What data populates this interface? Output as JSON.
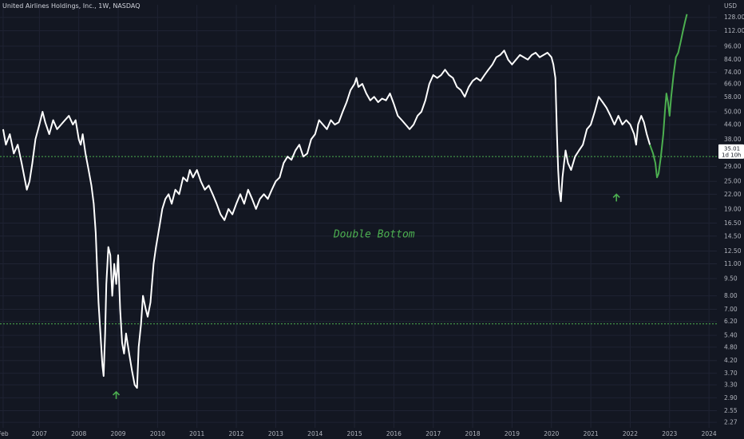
{
  "chart_data": {
    "type": "line",
    "title": "United Airlines Holdings, Inc., 1W, NASDAQ",
    "currency": "USD",
    "y_scale": "log",
    "ylim": [
      2.15,
      145
    ],
    "xlim": [
      2006.0,
      2024.2
    ],
    "y_ticks": [
      "128.00",
      "112.00",
      "96.00",
      "84.00",
      "74.00",
      "66.00",
      "58.00",
      "50.00",
      "44.00",
      "38.00",
      "29.00",
      "25.00",
      "22.00",
      "19.00",
      "16.50",
      "14.50",
      "12.50",
      "11.00",
      "9.50",
      "8.00",
      "7.00",
      "6.20",
      "5.40",
      "4.80",
      "4.20",
      "3.70",
      "3.30",
      "2.90",
      "2.55",
      "2.27"
    ],
    "x_ticks": [
      {
        "label": "Feb",
        "x": 2006.08
      },
      {
        "label": "2007",
        "x": 2007
      },
      {
        "label": "2008",
        "x": 2008
      },
      {
        "label": "2009",
        "x": 2009
      },
      {
        "label": "2010",
        "x": 2010
      },
      {
        "label": "2011",
        "x": 2011
      },
      {
        "label": "2012",
        "x": 2012
      },
      {
        "label": "2013",
        "x": 2013
      },
      {
        "label": "2014",
        "x": 2014
      },
      {
        "label": "2015",
        "x": 2015
      },
      {
        "label": "2016",
        "x": 2016
      },
      {
        "label": "2017",
        "x": 2017
      },
      {
        "label": "2018",
        "x": 2018
      },
      {
        "label": "2019",
        "x": 2019
      },
      {
        "label": "2020",
        "x": 2020
      },
      {
        "label": "2021",
        "x": 2021
      },
      {
        "label": "2022",
        "x": 2022
      },
      {
        "label": "2023",
        "x": 2023
      },
      {
        "label": "2024",
        "x": 2024
      }
    ],
    "series": [
      {
        "color": "#ffffff",
        "points": [
          [
            2006.08,
            42
          ],
          [
            2006.15,
            36
          ],
          [
            2006.25,
            40
          ],
          [
            2006.35,
            33
          ],
          [
            2006.45,
            36
          ],
          [
            2006.55,
            30
          ],
          [
            2006.62,
            26
          ],
          [
            2006.68,
            23
          ],
          [
            2006.75,
            25
          ],
          [
            2006.82,
            30
          ],
          [
            2006.9,
            38
          ],
          [
            2007.0,
            44
          ],
          [
            2007.08,
            50
          ],
          [
            2007.15,
            45
          ],
          [
            2007.25,
            40
          ],
          [
            2007.35,
            46
          ],
          [
            2007.45,
            42
          ],
          [
            2007.55,
            44
          ],
          [
            2007.65,
            46
          ],
          [
            2007.75,
            48
          ],
          [
            2007.85,
            44
          ],
          [
            2007.92,
            46
          ],
          [
            2008.0,
            38
          ],
          [
            2008.05,
            36
          ],
          [
            2008.1,
            40
          ],
          [
            2008.17,
            33
          ],
          [
            2008.25,
            28
          ],
          [
            2008.32,
            24
          ],
          [
            2008.38,
            20
          ],
          [
            2008.43,
            15
          ],
          [
            2008.47,
            10
          ],
          [
            2008.5,
            7.5
          ],
          [
            2008.55,
            5.5
          ],
          [
            2008.6,
            4.0
          ],
          [
            2008.63,
            3.6
          ],
          [
            2008.67,
            5.5
          ],
          [
            2008.7,
            9.0
          ],
          [
            2008.75,
            13.0
          ],
          [
            2008.8,
            12.0
          ],
          [
            2008.85,
            8.0
          ],
          [
            2008.9,
            11.0
          ],
          [
            2008.95,
            9.0
          ],
          [
            2009.0,
            12.0
          ],
          [
            2009.05,
            7.0
          ],
          [
            2009.1,
            5.0
          ],
          [
            2009.15,
            4.5
          ],
          [
            2009.2,
            5.5
          ],
          [
            2009.28,
            4.5
          ],
          [
            2009.35,
            3.8
          ],
          [
            2009.42,
            3.3
          ],
          [
            2009.48,
            3.2
          ],
          [
            2009.52,
            4.8
          ],
          [
            2009.58,
            6.0
          ],
          [
            2009.63,
            8.0
          ],
          [
            2009.7,
            7.0
          ],
          [
            2009.75,
            6.5
          ],
          [
            2009.82,
            7.5
          ],
          [
            2009.9,
            11.0
          ],
          [
            2009.96,
            13.0
          ],
          [
            2010.05,
            16.0
          ],
          [
            2010.12,
            19.0
          ],
          [
            2010.2,
            21.0
          ],
          [
            2010.28,
            22.0
          ],
          [
            2010.36,
            20.0
          ],
          [
            2010.45,
            23.0
          ],
          [
            2010.55,
            22.0
          ],
          [
            2010.65,
            26.0
          ],
          [
            2010.75,
            25.0
          ],
          [
            2010.82,
            28.0
          ],
          [
            2010.9,
            26.0
          ],
          [
            2011.0,
            28.0
          ],
          [
            2011.1,
            25.0
          ],
          [
            2011.2,
            23.0
          ],
          [
            2011.3,
            24.0
          ],
          [
            2011.4,
            22.0
          ],
          [
            2011.5,
            20.0
          ],
          [
            2011.6,
            18.0
          ],
          [
            2011.7,
            17.0
          ],
          [
            2011.8,
            19.0
          ],
          [
            2011.9,
            18.0
          ],
          [
            2012.0,
            20.0
          ],
          [
            2012.1,
            22.0
          ],
          [
            2012.2,
            20.0
          ],
          [
            2012.3,
            23.0
          ],
          [
            2012.4,
            21.0
          ],
          [
            2012.5,
            19.0
          ],
          [
            2012.6,
            21.0
          ],
          [
            2012.7,
            22.0
          ],
          [
            2012.8,
            21.0
          ],
          [
            2012.9,
            23.0
          ],
          [
            2013.0,
            25.0
          ],
          [
            2013.1,
            26.0
          ],
          [
            2013.2,
            30.0
          ],
          [
            2013.3,
            32.0
          ],
          [
            2013.4,
            31.0
          ],
          [
            2013.5,
            34.0
          ],
          [
            2013.6,
            36.0
          ],
          [
            2013.7,
            32.0
          ],
          [
            2013.8,
            33.0
          ],
          [
            2013.9,
            38.0
          ],
          [
            2014.0,
            40.0
          ],
          [
            2014.1,
            46.0
          ],
          [
            2014.2,
            44.0
          ],
          [
            2014.3,
            42.0
          ],
          [
            2014.4,
            46.0
          ],
          [
            2014.5,
            44.0
          ],
          [
            2014.6,
            45.0
          ],
          [
            2014.7,
            50.0
          ],
          [
            2014.8,
            55.0
          ],
          [
            2014.9,
            62.0
          ],
          [
            2015.0,
            66.0
          ],
          [
            2015.05,
            70.0
          ],
          [
            2015.1,
            64.0
          ],
          [
            2015.2,
            66.0
          ],
          [
            2015.3,
            60.0
          ],
          [
            2015.4,
            56.0
          ],
          [
            2015.5,
            58.0
          ],
          [
            2015.6,
            55.0
          ],
          [
            2015.7,
            57.0
          ],
          [
            2015.8,
            56.0
          ],
          [
            2015.9,
            60.0
          ],
          [
            2016.0,
            54.0
          ],
          [
            2016.1,
            48.0
          ],
          [
            2016.2,
            46.0
          ],
          [
            2016.3,
            44.0
          ],
          [
            2016.4,
            42.0
          ],
          [
            2016.5,
            44.0
          ],
          [
            2016.6,
            48.0
          ],
          [
            2016.7,
            50.0
          ],
          [
            2016.8,
            56.0
          ],
          [
            2016.9,
            66.0
          ],
          [
            2017.0,
            72.0
          ],
          [
            2017.1,
            70.0
          ],
          [
            2017.2,
            72.0
          ],
          [
            2017.3,
            76.0
          ],
          [
            2017.4,
            72.0
          ],
          [
            2017.5,
            70.0
          ],
          [
            2017.6,
            64.0
          ],
          [
            2017.7,
            62.0
          ],
          [
            2017.8,
            58.0
          ],
          [
            2017.9,
            64.0
          ],
          [
            2018.0,
            68.0
          ],
          [
            2018.1,
            70.0
          ],
          [
            2018.2,
            68.0
          ],
          [
            2018.3,
            72.0
          ],
          [
            2018.4,
            76.0
          ],
          [
            2018.5,
            80.0
          ],
          [
            2018.6,
            86.0
          ],
          [
            2018.7,
            88.0
          ],
          [
            2018.8,
            92.0
          ],
          [
            2018.9,
            84.0
          ],
          [
            2019.0,
            80.0
          ],
          [
            2019.1,
            84.0
          ],
          [
            2019.2,
            88.0
          ],
          [
            2019.3,
            86.0
          ],
          [
            2019.4,
            84.0
          ],
          [
            2019.5,
            88.0
          ],
          [
            2019.6,
            90.0
          ],
          [
            2019.7,
            86.0
          ],
          [
            2019.8,
            88.0
          ],
          [
            2019.9,
            90.0
          ],
          [
            2020.0,
            86.0
          ],
          [
            2020.05,
            80.0
          ],
          [
            2020.1,
            70.0
          ],
          [
            2020.14,
            40.0
          ],
          [
            2020.17,
            28.0
          ],
          [
            2020.2,
            23.0
          ],
          [
            2020.24,
            20.5
          ],
          [
            2020.28,
            26.0
          ],
          [
            2020.32,
            30.0
          ],
          [
            2020.36,
            34.0
          ],
          [
            2020.42,
            30.0
          ],
          [
            2020.5,
            28.0
          ],
          [
            2020.6,
            32.0
          ],
          [
            2020.7,
            34.0
          ],
          [
            2020.8,
            36.0
          ],
          [
            2020.9,
            42.0
          ],
          [
            2021.0,
            44.0
          ],
          [
            2021.1,
            50.0
          ],
          [
            2021.2,
            58.0
          ],
          [
            2021.3,
            55.0
          ],
          [
            2021.4,
            52.0
          ],
          [
            2021.5,
            48.0
          ],
          [
            2021.6,
            44.0
          ],
          [
            2021.7,
            48.0
          ],
          [
            2021.8,
            44.0
          ],
          [
            2021.9,
            46.0
          ],
          [
            2022.0,
            44.0
          ],
          [
            2022.1,
            40.0
          ],
          [
            2022.15,
            36.0
          ],
          [
            2022.2,
            44.0
          ],
          [
            2022.28,
            48.0
          ],
          [
            2022.35,
            45.0
          ],
          [
            2022.42,
            40.0
          ],
          [
            2022.5,
            36.0
          ]
        ]
      },
      {
        "color": "#4caf50",
        "points": [
          [
            2022.5,
            36.0
          ],
          [
            2022.58,
            33.0
          ],
          [
            2022.64,
            30.0
          ],
          [
            2022.68,
            26.0
          ],
          [
            2022.72,
            27.0
          ],
          [
            2022.78,
            32.0
          ],
          [
            2022.84,
            40.0
          ],
          [
            2022.88,
            50.0
          ],
          [
            2022.92,
            60.0
          ],
          [
            2022.96,
            55.0
          ],
          [
            2023.0,
            48.0
          ],
          [
            2023.04,
            58.0
          ],
          [
            2023.1,
            72.0
          ],
          [
            2023.16,
            86.0
          ],
          [
            2023.22,
            90.0
          ],
          [
            2023.28,
            100.0
          ],
          [
            2023.34,
            112.0
          ],
          [
            2023.4,
            124.0
          ],
          [
            2023.44,
            132.0
          ]
        ]
      }
    ],
    "horizontal_lines": [
      {
        "y": 32.0,
        "color": "#4caf50"
      },
      {
        "y": 6.05,
        "color": "#4caf50"
      }
    ],
    "price_badge": {
      "value": "35.01",
      "sub": "1d 10h",
      "y": 35.01
    },
    "annotation": {
      "text": "Double Bottom",
      "x": 2015.5,
      "y": 14.3
    },
    "markers": [
      {
        "name": "arrow-up",
        "x": 2008.95,
        "y": 2.98
      },
      {
        "name": "arrow-up",
        "x": 2021.65,
        "y": 21.3
      }
    ]
  }
}
